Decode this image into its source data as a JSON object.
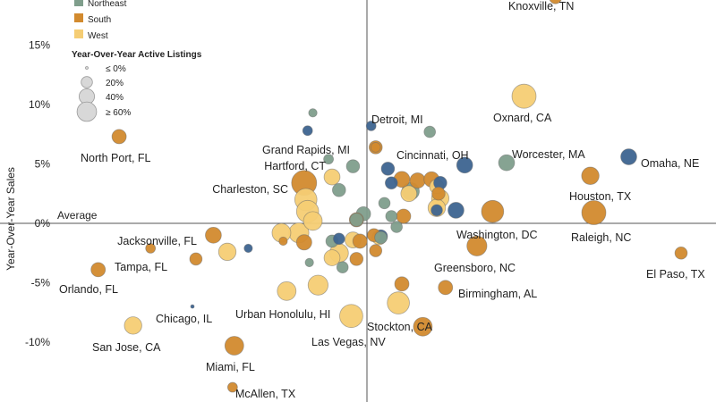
{
  "colors": {
    "Midwest": "#3d6490",
    "Northeast": "#7f9e8c",
    "South": "#d28a2e",
    "West": "#f5cd74",
    "axis": "#555555",
    "text": "#222222"
  },
  "chart_data": {
    "type": "scatter",
    "ylabel": "Year-Over-Year Sales",
    "ylim": [
      -14,
      18
    ],
    "xlim": [
      -1,
      1
    ],
    "y_ticks": [
      {
        "value": 15,
        "label": "15%"
      },
      {
        "value": 10,
        "label": "10%"
      },
      {
        "value": 5,
        "label": "5%"
      },
      {
        "value": 0,
        "label": "0%"
      },
      {
        "value": -5,
        "label": "-5%"
      },
      {
        "value": -10,
        "label": "-10%"
      }
    ],
    "average_label": "Average",
    "grid": false,
    "legend": {
      "placement": "top-left",
      "region_entries": [
        {
          "name": "Northeast",
          "color_key": "Northeast"
        },
        {
          "name": "South",
          "color_key": "South"
        },
        {
          "name": "West",
          "color_key": "West"
        }
      ],
      "size_title": "Year-Over-Year Active Listings",
      "size_entries": [
        {
          "label": "≤ 0%",
          "value": 0
        },
        {
          "label": "20%",
          "value": 20
        },
        {
          "label": "40%",
          "value": 40
        },
        {
          "label": "≥ 60%",
          "value": 60
        }
      ]
    },
    "points": [
      {
        "label": "Knoxville, TN",
        "region": "South",
        "x": 0.54,
        "y": 19.0,
        "size": 10,
        "label_dx": -10,
        "label_dy": 0
      },
      {
        "label": "Oxnard, CA",
        "region": "West",
        "x": 0.45,
        "y": 10.7,
        "size": 55,
        "label_dx": -35,
        "label_dy": 22
      },
      {
        "label": "Detroit, MI",
        "region": "Midwest",
        "x": 0.012,
        "y": 8.2,
        "size": 5,
        "label_dx": 0,
        "label_dy": -12
      },
      {
        "label": "Grand Rapids, MI",
        "region": "Midwest",
        "x": -0.17,
        "y": 7.8,
        "size": 5,
        "label_dx": 40,
        "label_dy": 20
      },
      {
        "label": "Cincinnati, OH",
        "region": "South",
        "x": 0.025,
        "y": 6.4,
        "size": 5,
        "label_dx": 70,
        "label_dy": 12
      },
      {
        "label": "Worcester, MA",
        "region": "Northeast",
        "x": 0.4,
        "y": 5.1,
        "size": 20,
        "label_dx": 0,
        "label_dy": 0
      },
      {
        "label": "Omaha, NE",
        "region": "Midwest",
        "x": 0.75,
        "y": 5.6,
        "size": 20,
        "label_dx": 0,
        "label_dy": 0
      },
      {
        "label": "Houston, TX",
        "region": "South",
        "x": 0.64,
        "y": 4.0,
        "size": 25,
        "label_dx": 0,
        "label_dy": 0
      },
      {
        "label": "Hartford, CT",
        "region": "Northeast",
        "x": -0.11,
        "y": 5.4,
        "size": 5,
        "label_dx": -30,
        "label_dy": -2
      },
      {
        "label": "Charleston, SC",
        "region": "South",
        "x": -0.18,
        "y": 3.4,
        "size": 60,
        "label_dx": 0,
        "label_dy": 0
      },
      {
        "label": "North Port, FL",
        "region": "South",
        "x": -0.71,
        "y": 7.3,
        "size": 15,
        "label_dx": 0,
        "label_dy": 0
      },
      {
        "label": "Washington, DC",
        "region": "South",
        "x": 0.36,
        "y": 1.0,
        "size": 45,
        "label_dx": -45,
        "label_dy": 20
      },
      {
        "label": "Raleigh, NC",
        "region": "South",
        "x": 0.65,
        "y": 0.9,
        "size": 55,
        "label_dx": 0,
        "label_dy": 25
      },
      {
        "label": "El Paso, TX",
        "region": "South",
        "x": 0.9,
        "y": -2.5,
        "size": 10,
        "label_dx": -30,
        "label_dy": 20
      },
      {
        "label": "Greensboro, NC",
        "region": "South",
        "x": 0.315,
        "y": -1.9,
        "size": 35,
        "label_dx": -30,
        "label_dy": 20
      },
      {
        "label": "Birmingham, AL",
        "region": "South",
        "x": 0.225,
        "y": -5.4,
        "size": 15,
        "label_dx": 0,
        "label_dy": 0
      },
      {
        "label": "Jacksonville, FL",
        "region": "South",
        "x": -0.44,
        "y": -1.0,
        "size": 20,
        "label_dx": 0,
        "label_dy": 0
      },
      {
        "label": "Tampa, FL",
        "region": "South",
        "x": -0.62,
        "y": -2.1,
        "size": 5,
        "label_dx": 0,
        "label_dy": 0
      },
      {
        "label": "Orlando, FL",
        "region": "South",
        "x": -0.77,
        "y": -3.9,
        "size": 15,
        "label_dx": -5,
        "label_dy": 20
      },
      {
        "label": "Chicago, IL",
        "region": "Midwest",
        "x": -0.5,
        "y": -7.0,
        "size": 0,
        "label_dx": 0,
        "label_dy": 0
      },
      {
        "label": "Urban Honolulu, HI",
        "region": "West",
        "x": -0.23,
        "y": -5.7,
        "size": 30,
        "label_dx": -25,
        "label_dy": 20
      },
      {
        "label": "Stockton, CA",
        "region": "West",
        "x": 0.09,
        "y": -6.7,
        "size": 45,
        "label_dx": 0,
        "label_dy": 20
      },
      {
        "label": "Las Vegas, NV",
        "region": "West",
        "x": -0.045,
        "y": -7.8,
        "size": 50,
        "label_dx": -25,
        "label_dy": 20
      },
      {
        "label": "San Jose, CA",
        "region": "West",
        "x": -0.67,
        "y": -8.6,
        "size": 25,
        "label_dx": 0,
        "label_dy": 20
      },
      {
        "label": "Miami, FL",
        "region": "South",
        "x": -0.38,
        "y": -10.3,
        "size": 30,
        "label_dx": 0,
        "label_dy": 20
      },
      {
        "label": "McAllen, TX",
        "region": "South",
        "x": -0.385,
        "y": -13.8,
        "size": 5,
        "label_dx": 0,
        "label_dy": 0
      },
      {
        "label": "",
        "region": "Northeast",
        "x": -0.155,
        "y": 9.3,
        "size": 3
      },
      {
        "label": "",
        "region": "Northeast",
        "x": 0.18,
        "y": 7.7,
        "size": 8
      },
      {
        "label": "",
        "region": "South",
        "x": 0.025,
        "y": 6.4,
        "size": 12
      },
      {
        "label": "",
        "region": "Midwest",
        "x": 0.06,
        "y": 4.6,
        "size": 12
      },
      {
        "label": "",
        "region": "Midwest",
        "x": 0.28,
        "y": 4.9,
        "size": 20
      },
      {
        "label": "",
        "region": "Northeast",
        "x": -0.04,
        "y": 4.8,
        "size": 12
      },
      {
        "label": "",
        "region": "West",
        "x": -0.1,
        "y": 3.9,
        "size": 20
      },
      {
        "label": "",
        "region": "South",
        "x": 0.1,
        "y": 3.7,
        "size": 20
      },
      {
        "label": "",
        "region": "South",
        "x": 0.145,
        "y": 3.6,
        "size": 18
      },
      {
        "label": "",
        "region": "South",
        "x": 0.185,
        "y": 3.7,
        "size": 18
      },
      {
        "label": "",
        "region": "Midwest",
        "x": 0.07,
        "y": 3.4,
        "size": 10
      },
      {
        "label": "",
        "region": "Midwest",
        "x": 0.21,
        "y": 3.4,
        "size": 12
      },
      {
        "label": "",
        "region": "West",
        "x": 0.2,
        "y": 3.1,
        "size": 15
      },
      {
        "label": "",
        "region": "Northeast",
        "x": 0.125,
        "y": 2.7,
        "size": 25
      },
      {
        "label": "",
        "region": "West",
        "x": 0.12,
        "y": 2.5,
        "size": 20
      },
      {
        "label": "",
        "region": "South",
        "x": 0.205,
        "y": 2.5,
        "size": 12
      },
      {
        "label": "",
        "region": "West",
        "x": 0.21,
        "y": 2.1,
        "size": 25
      },
      {
        "label": "",
        "region": "West",
        "x": -0.175,
        "y": 2.0,
        "size": 45
      },
      {
        "label": "",
        "region": "Northeast",
        "x": -0.08,
        "y": 2.8,
        "size": 12
      },
      {
        "label": "",
        "region": "West",
        "x": -0.17,
        "y": 1.0,
        "size": 45
      },
      {
        "label": "",
        "region": "West",
        "x": 0.2,
        "y": 1.3,
        "size": 25
      },
      {
        "label": "",
        "region": "Midwest",
        "x": 0.2,
        "y": 1.1,
        "size": 8
      },
      {
        "label": "",
        "region": "Midwest",
        "x": 0.255,
        "y": 1.1,
        "size": 20
      },
      {
        "label": "",
        "region": "Northeast",
        "x": 0.05,
        "y": 1.7,
        "size": 8
      },
      {
        "label": "",
        "region": "Northeast",
        "x": -0.01,
        "y": 0.8,
        "size": 15
      },
      {
        "label": "",
        "region": "Northeast",
        "x": -0.03,
        "y": 0.3,
        "size": 12
      },
      {
        "label": "",
        "region": "South",
        "x": 0.105,
        "y": 0.6,
        "size": 15
      },
      {
        "label": "",
        "region": "Northeast",
        "x": 0.07,
        "y": 0.6,
        "size": 8
      },
      {
        "label": "",
        "region": "West",
        "x": -0.155,
        "y": 0.2,
        "size": 30
      },
      {
        "label": "",
        "region": "South",
        "x": -0.03,
        "y": 0.3,
        "size": 15
      },
      {
        "label": "",
        "region": "Northeast",
        "x": 0.085,
        "y": -0.3,
        "size": 8
      },
      {
        "label": "",
        "region": "West",
        "x": -0.195,
        "y": -0.8,
        "size": 35
      },
      {
        "label": "",
        "region": "South",
        "x": -0.18,
        "y": -1.6,
        "size": 18
      },
      {
        "label": "",
        "region": "Midwest",
        "x": -0.08,
        "y": -1.3,
        "size": 8
      },
      {
        "label": "",
        "region": "Northeast",
        "x": -0.1,
        "y": -1.5,
        "size": 10
      },
      {
        "label": "",
        "region": "South",
        "x": -0.02,
        "y": -1.5,
        "size": 15
      },
      {
        "label": "",
        "region": "West",
        "x": -0.04,
        "y": -1.4,
        "size": 20
      },
      {
        "label": "",
        "region": "Midwest",
        "x": 0.04,
        "y": -1.1,
        "size": 12
      },
      {
        "label": "",
        "region": "West",
        "x": 0.035,
        "y": -1.2,
        "size": 15
      },
      {
        "label": "",
        "region": "Northeast",
        "x": 0.04,
        "y": -1.2,
        "size": 10
      },
      {
        "label": "",
        "region": "South",
        "x": 0.02,
        "y": -1.0,
        "size": 12
      },
      {
        "label": "",
        "region": "South",
        "x": 0.025,
        "y": -2.3,
        "size": 10
      },
      {
        "label": "",
        "region": "West",
        "x": -0.08,
        "y": -2.5,
        "size": 30
      },
      {
        "label": "",
        "region": "West",
        "x": -0.1,
        "y": -2.9,
        "size": 20
      },
      {
        "label": "",
        "region": "South",
        "x": -0.03,
        "y": -3.0,
        "size": 12
      },
      {
        "label": "",
        "region": "Northeast",
        "x": -0.165,
        "y": -3.3,
        "size": 3
      },
      {
        "label": "",
        "region": "Northeast",
        "x": -0.07,
        "y": -3.7,
        "size": 8
      },
      {
        "label": "",
        "region": "West",
        "x": -0.4,
        "y": -2.4,
        "size": 25
      },
      {
        "label": "",
        "region": "Midwest",
        "x": -0.34,
        "y": -2.1,
        "size": 3
      },
      {
        "label": "",
        "region": "South",
        "x": -0.49,
        "y": -3.0,
        "size": 10
      },
      {
        "label": "",
        "region": "South",
        "x": -0.24,
        "y": -1.5,
        "size": 3
      },
      {
        "label": "",
        "region": "West",
        "x": -0.245,
        "y": -0.8,
        "size": 30
      },
      {
        "label": "",
        "region": "South",
        "x": 0.1,
        "y": -5.1,
        "size": 15
      },
      {
        "label": "",
        "region": "West",
        "x": -0.14,
        "y": -5.2,
        "size": 35
      },
      {
        "label": "",
        "region": "South",
        "x": 0.16,
        "y": -8.7,
        "size": 30
      }
    ]
  }
}
